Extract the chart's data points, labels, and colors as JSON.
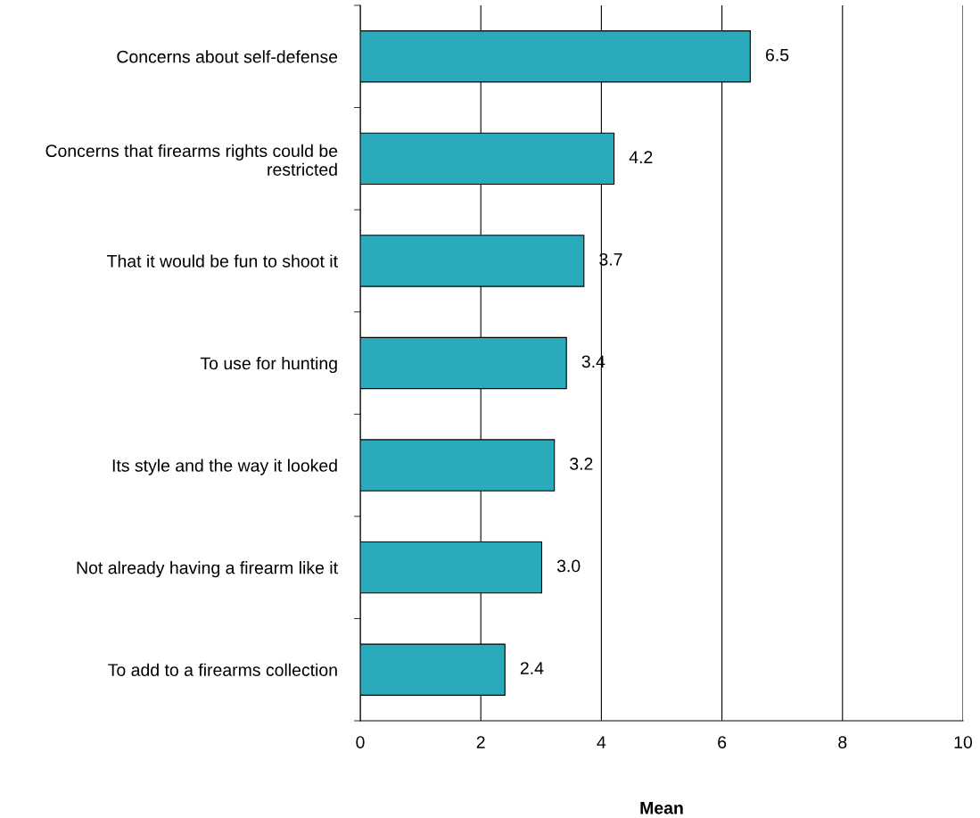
{
  "chart_data": {
    "type": "bar",
    "orientation": "horizontal",
    "xlabel": "Mean",
    "categories": [
      "Concerns about self-defense",
      "Concerns that firearms rights could be restricted",
      "That it would be fun to shoot it",
      "To use for hunting",
      "Its style and the way it looked",
      "Not already having a firearm like it",
      "To add to a firearms collection"
    ],
    "values": [
      6.47,
      4.21,
      3.71,
      3.42,
      3.22,
      3.01,
      2.4
    ],
    "value_labels": [
      "6.5",
      "4.2",
      "3.7",
      "3.4",
      "3.2",
      "3.0",
      "2.4"
    ],
    "color": "#2aabbc",
    "xlim": [
      0,
      10
    ],
    "xticks": [
      0,
      2,
      4,
      6,
      8,
      10
    ],
    "grid": "x"
  }
}
